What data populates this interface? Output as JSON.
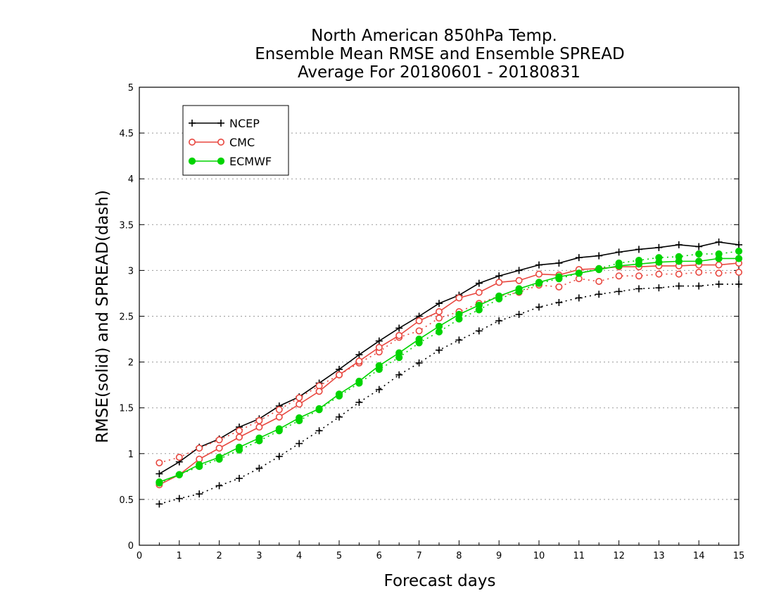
{
  "chart_data": {
    "type": "line",
    "title": [
      "North American 850hPa Temp.",
      "Ensemble Mean RMSE and Ensemble SPREAD",
      "Average For 20180601 - 20180831"
    ],
    "xlabel": "Forecast days",
    "ylabel": "RMSE(solid) and SPREAD(dash)",
    "xlim": [
      0,
      15
    ],
    "ylim": [
      0,
      5
    ],
    "xticks": [
      0,
      1,
      2,
      3,
      4,
      5,
      6,
      7,
      8,
      9,
      10,
      11,
      12,
      13,
      14,
      15
    ],
    "yticks": [
      0,
      0.5,
      1,
      1.5,
      2,
      2.5,
      3,
      3.5,
      4,
      4.5,
      5
    ],
    "ytick_labels": [
      "0",
      "0.5",
      "1",
      "1.5",
      "2",
      "2.5",
      "3",
      "3.5",
      "4",
      "4.5",
      "5"
    ],
    "grid": "horizontal dotted",
    "legend_position": "top-left",
    "x": [
      0.5,
      1,
      1.5,
      2,
      2.5,
      3,
      3.5,
      4,
      4.5,
      5,
      5.5,
      6,
      6.5,
      7,
      7.5,
      8,
      8.5,
      9,
      9.5,
      10,
      10.5,
      11,
      11.5,
      12,
      12.5,
      13,
      13.5,
      14,
      14.5,
      15
    ],
    "series": [
      {
        "name": "NCEP",
        "color": "#000000",
        "marker": "plus",
        "rmse": [
          0.78,
          0.91,
          1.07,
          1.16,
          1.29,
          1.38,
          1.52,
          1.62,
          1.77,
          1.92,
          2.08,
          2.23,
          2.37,
          2.5,
          2.64,
          2.73,
          2.86,
          2.94,
          3.0,
          3.06,
          3.08,
          3.14,
          3.16,
          3.2,
          3.23,
          3.25,
          3.28,
          3.26,
          3.31,
          3.28
        ],
        "spread": [
          0.45,
          0.51,
          0.56,
          0.65,
          0.73,
          0.84,
          0.97,
          1.11,
          1.25,
          1.4,
          1.56,
          1.7,
          1.86,
          1.99,
          2.13,
          2.24,
          2.34,
          2.45,
          2.52,
          2.6,
          2.65,
          2.7,
          2.74,
          2.77,
          2.8,
          2.81,
          2.83,
          2.83,
          2.85,
          2.85
        ]
      },
      {
        "name": "CMC",
        "color": "#e8473f",
        "marker": "open-circle",
        "rmse": [
          0.66,
          0.77,
          0.94,
          1.06,
          1.18,
          1.29,
          1.4,
          1.54,
          1.68,
          1.86,
          2.01,
          2.16,
          2.29,
          2.45,
          2.55,
          2.7,
          2.76,
          2.87,
          2.89,
          2.96,
          2.95,
          3.01,
          3.02,
          3.04,
          3.04,
          3.05,
          3.05,
          3.06,
          3.06,
          3.08
        ],
        "spread": [
          0.9,
          0.96,
          1.06,
          1.15,
          1.25,
          1.36,
          1.48,
          1.61,
          1.74,
          1.86,
          1.99,
          2.11,
          2.27,
          2.34,
          2.48,
          2.55,
          2.64,
          2.72,
          2.76,
          2.84,
          2.82,
          2.91,
          2.88,
          2.94,
          2.94,
          2.96,
          2.96,
          2.98,
          2.97,
          2.98
        ]
      },
      {
        "name": "ECMWF",
        "color": "#00d400",
        "marker": "filled-circle",
        "rmse": [
          0.69,
          0.77,
          0.88,
          0.96,
          1.07,
          1.17,
          1.27,
          1.39,
          1.49,
          1.65,
          1.79,
          1.96,
          2.1,
          2.25,
          2.39,
          2.52,
          2.62,
          2.72,
          2.8,
          2.87,
          2.93,
          2.97,
          3.01,
          3.05,
          3.07,
          3.09,
          3.1,
          3.1,
          3.13,
          3.13
        ],
        "spread": [
          0.68,
          0.77,
          0.86,
          0.94,
          1.04,
          1.14,
          1.25,
          1.36,
          1.48,
          1.63,
          1.77,
          1.92,
          2.05,
          2.21,
          2.33,
          2.47,
          2.57,
          2.69,
          2.77,
          2.86,
          2.91,
          2.97,
          3.02,
          3.08,
          3.11,
          3.14,
          3.15,
          3.18,
          3.18,
          3.21
        ]
      }
    ]
  }
}
